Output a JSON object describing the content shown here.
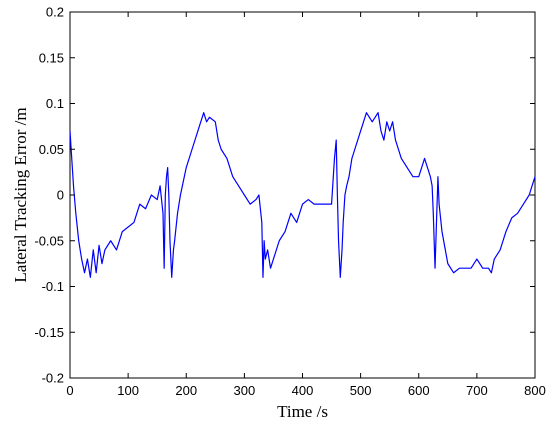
{
  "chart_data": {
    "type": "line",
    "title": "",
    "xlabel": "Time /s",
    "ylabel": "Lateral Tracking Error /m",
    "xlim": [
      0,
      800
    ],
    "ylim": [
      -0.2,
      0.2
    ],
    "xticks": [
      "0",
      "100",
      "200",
      "300",
      "400",
      "500",
      "600",
      "700",
      "800"
    ],
    "yticks": [
      "-0.2",
      "-0.15",
      "-0.1",
      "-0.05",
      "0",
      "0.05",
      "0.1",
      "0.15",
      "0.2"
    ],
    "grid": false,
    "legend": "none",
    "series": [
      {
        "color": "#0000ff",
        "x": [
          0,
          3,
          6,
          10,
          15,
          20,
          25,
          30,
          35,
          40,
          45,
          50,
          55,
          60,
          70,
          80,
          90,
          100,
          110,
          115,
          120,
          130,
          140,
          150,
          155,
          160,
          162,
          164,
          166,
          168,
          170,
          172,
          175,
          178,
          180,
          185,
          190,
          200,
          210,
          220,
          230,
          235,
          240,
          250,
          255,
          260,
          270,
          280,
          290,
          300,
          310,
          320,
          325,
          330,
          332,
          334,
          336,
          340,
          345,
          350,
          360,
          370,
          380,
          390,
          400,
          410,
          420,
          430,
          440,
          450,
          455,
          458,
          460,
          462,
          465,
          468,
          470,
          473,
          476,
          480,
          485,
          490,
          500,
          510,
          520,
          530,
          535,
          540,
          545,
          550,
          555,
          560,
          570,
          580,
          590,
          600,
          605,
          610,
          615,
          620,
          623,
          625,
          628,
          630,
          633,
          635,
          640,
          650,
          660,
          670,
          680,
          690,
          700,
          710,
          720,
          725,
          730,
          740,
          750,
          760,
          770,
          780,
          790,
          795,
          800
        ],
        "y": [
          0.07,
          0.04,
          0.01,
          -0.02,
          -0.05,
          -0.07,
          -0.085,
          -0.07,
          -0.09,
          -0.06,
          -0.085,
          -0.055,
          -0.075,
          -0.06,
          -0.05,
          -0.06,
          -0.04,
          -0.035,
          -0.03,
          -0.02,
          -0.01,
          -0.015,
          0.0,
          -0.005,
          0.01,
          -0.02,
          -0.08,
          0.0,
          0.02,
          0.03,
          0.0,
          -0.05,
          -0.09,
          -0.06,
          -0.05,
          -0.02,
          0.0,
          0.03,
          0.05,
          0.07,
          0.09,
          0.08,
          0.085,
          0.08,
          0.06,
          0.05,
          0.04,
          0.02,
          0.01,
          0.0,
          -0.01,
          -0.005,
          0.0,
          -0.03,
          -0.09,
          -0.05,
          -0.07,
          -0.06,
          -0.08,
          -0.07,
          -0.05,
          -0.04,
          -0.02,
          -0.03,
          -0.01,
          -0.005,
          -0.01,
          -0.01,
          -0.01,
          -0.01,
          0.04,
          0.06,
          0.0,
          -0.05,
          -0.09,
          -0.06,
          -0.03,
          0.0,
          0.01,
          0.02,
          0.04,
          0.05,
          0.07,
          0.09,
          0.08,
          0.09,
          0.07,
          0.06,
          0.08,
          0.07,
          0.08,
          0.06,
          0.04,
          0.03,
          0.02,
          0.02,
          0.03,
          0.04,
          0.03,
          0.02,
          0.01,
          -0.02,
          -0.08,
          -0.04,
          0.02,
          -0.01,
          -0.04,
          -0.075,
          -0.085,
          -0.08,
          -0.08,
          -0.08,
          -0.07,
          -0.08,
          -0.08,
          -0.085,
          -0.07,
          -0.06,
          -0.04,
          -0.025,
          -0.02,
          -0.01,
          0.0,
          0.01,
          0.02
        ]
      }
    ]
  }
}
